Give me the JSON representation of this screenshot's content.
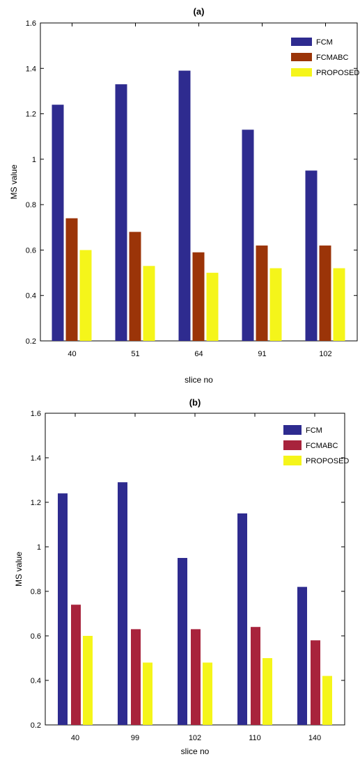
{
  "chart_data": [
    {
      "type": "bar",
      "title": "(a)",
      "xlabel": "slice no",
      "ylabel": "MS value",
      "categories": [
        "40",
        "51",
        "64",
        "91",
        "102"
      ],
      "ylim": [
        0.2,
        1.6
      ],
      "yticks": [
        "0.2",
        "0.4",
        "0.6",
        "0.8",
        "1",
        "1.2",
        "1.4",
        "1.6"
      ],
      "legend_position": "top-right",
      "grid": false,
      "series": [
        {
          "name": "FCM",
          "color": "#2e2b8f",
          "values": [
            1.24,
            1.33,
            1.39,
            1.13,
            0.95
          ]
        },
        {
          "name": "FCMABC",
          "color": "#9b3408",
          "values": [
            0.74,
            0.68,
            0.59,
            0.62,
            0.62
          ]
        },
        {
          "name": "PROPOSED",
          "color": "#f5f51a",
          "values": [
            0.6,
            0.53,
            0.5,
            0.52,
            0.52
          ]
        }
      ]
    },
    {
      "type": "bar",
      "title": "(b)",
      "xlabel": "slice no",
      "ylabel": "MS value",
      "categories": [
        "40",
        "99",
        "102",
        "110",
        "140"
      ],
      "ylim": [
        0.2,
        1.6
      ],
      "yticks": [
        "0.2",
        "0.4",
        "0.6",
        "0.8",
        "1",
        "1.2",
        "1.4",
        "1.6"
      ],
      "legend_position": "top-right",
      "grid": false,
      "series": [
        {
          "name": "FCM",
          "color": "#2e2b8f",
          "values": [
            1.24,
            1.29,
            0.95,
            1.15,
            0.82
          ]
        },
        {
          "name": "FCMABC",
          "color": "#a8233c",
          "values": [
            0.74,
            0.63,
            0.63,
            0.64,
            0.58
          ]
        },
        {
          "name": "PROPOSED",
          "color": "#f5f51a",
          "values": [
            0.6,
            0.48,
            0.48,
            0.5,
            0.42
          ]
        }
      ]
    }
  ]
}
